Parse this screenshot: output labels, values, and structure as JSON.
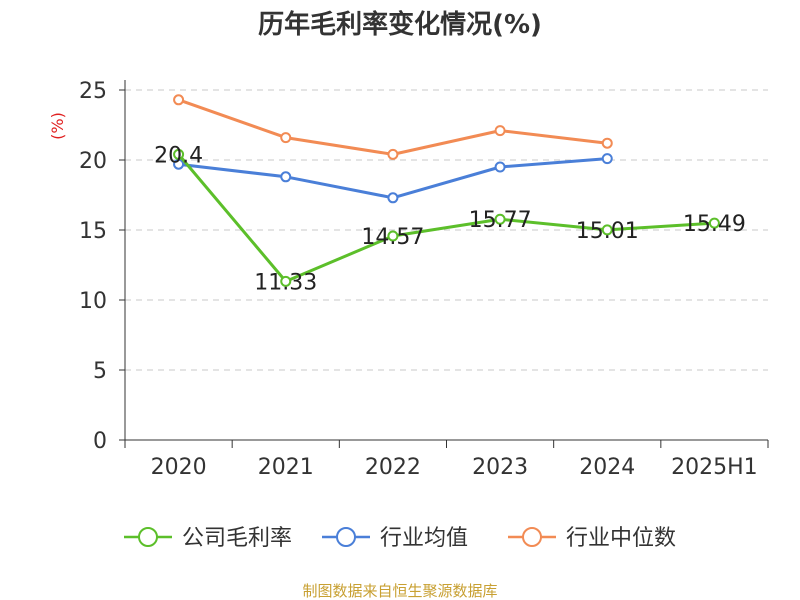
{
  "chart_data": {
    "type": "line",
    "title": "历年毛利率变化情况(%)",
    "ylabel": "(%)",
    "xlabel": "",
    "categories": [
      "2020",
      "2021",
      "2022",
      "2023",
      "2024",
      "2025H1"
    ],
    "yticks": [
      "0",
      "5",
      "10",
      "15",
      "20",
      "25"
    ],
    "ylim": [
      0,
      25
    ],
    "grid": "horizontal dashed",
    "legend_position": "bottom",
    "series": [
      {
        "name": "公司毛利率",
        "color": "#5cbf2a",
        "values": [
          20.4,
          11.33,
          14.57,
          15.77,
          15.01,
          15.49
        ],
        "labels": [
          "20.4",
          "11.33",
          "14.57",
          "15.77",
          "15.01",
          "15.49"
        ]
      },
      {
        "name": "行业均值",
        "color": "#4a7fd8",
        "values": [
          19.7,
          18.8,
          17.3,
          19.5,
          20.1,
          null
        ]
      },
      {
        "name": "行业中位数",
        "color": "#f28b54",
        "values": [
          24.3,
          21.6,
          20.4,
          22.1,
          21.2,
          null
        ]
      }
    ]
  },
  "source": "制图数据来自恒生聚源数据库"
}
